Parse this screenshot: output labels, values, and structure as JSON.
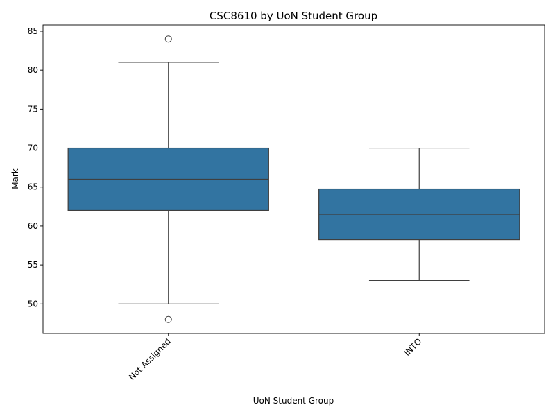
{
  "chart_data": {
    "type": "box",
    "title": "CSC8610 by UoN Student Group",
    "xlabel": "UoN Student Group",
    "ylabel": "Mark",
    "ylim": [
      46.2,
      85.8
    ],
    "yticks": [
      50,
      55,
      60,
      65,
      70,
      75,
      80,
      85
    ],
    "grid": false,
    "legend": "none",
    "box_color": "#3274a1",
    "line_color": "#3f3f3f",
    "categories": [
      "Not Assigned",
      "INTO"
    ],
    "boxes": [
      {
        "category": "Not Assigned",
        "whisker_low": 50,
        "q1": 62,
        "median": 66,
        "q3": 70,
        "whisker_high": 81,
        "outliers": [
          84,
          48
        ]
      },
      {
        "category": "INTO",
        "whisker_low": 53,
        "q1": 58.25,
        "median": 61.5,
        "q3": 64.75,
        "whisker_high": 70,
        "outliers": []
      }
    ]
  }
}
